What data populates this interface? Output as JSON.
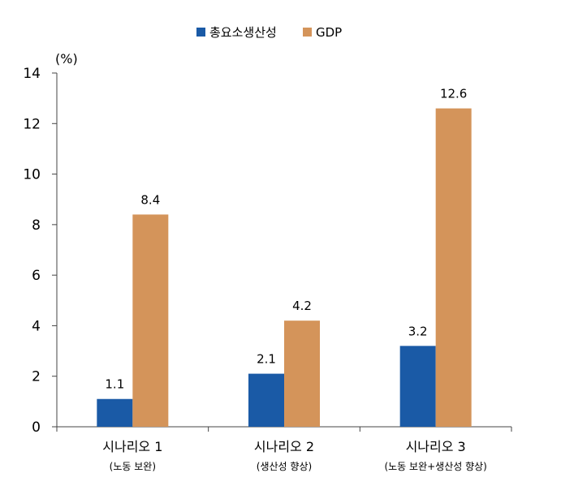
{
  "chart_data": {
    "type": "bar",
    "title": "",
    "unit_label": "(%)",
    "ylim": [
      0,
      14
    ],
    "yticks": [
      0,
      2,
      4,
      6,
      8,
      10,
      12,
      14
    ],
    "categories": [
      "시나리오 1",
      "시나리오 2",
      "시나리오 3"
    ],
    "category_sublabels": [
      "(노동 보완)",
      "(생산성 향상)",
      "(노동 보완+생산성 향상)"
    ],
    "series": [
      {
        "name": "총요소생산성",
        "color": "#1a5aa6",
        "values": [
          1.1,
          2.1,
          3.2
        ],
        "labels": [
          "1.1",
          "2.1",
          "3.2"
        ]
      },
      {
        "name": "GDP",
        "color": "#d4945a",
        "values": [
          8.4,
          4.2,
          12.6
        ],
        "labels": [
          "8.4",
          "4.2",
          "12.6"
        ]
      }
    ],
    "legend_position": "top-center",
    "grid": false
  }
}
